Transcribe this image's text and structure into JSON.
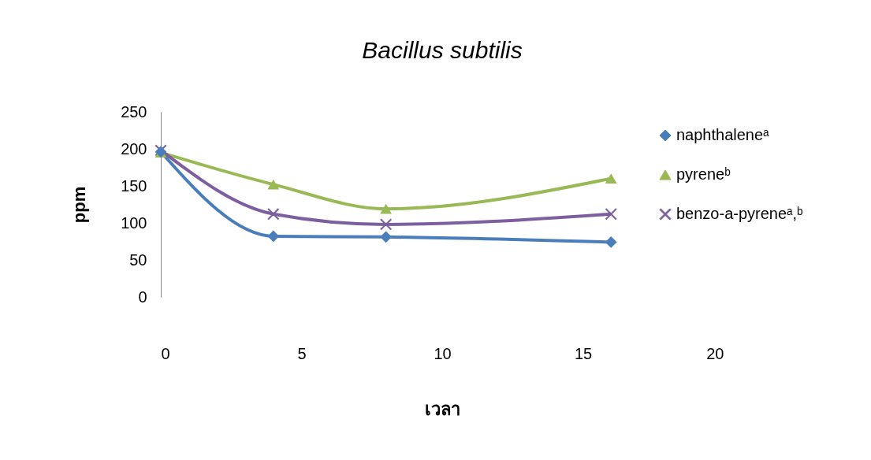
{
  "chart_data": {
    "type": "line",
    "title": "Bacillus subtilis",
    "xlabel": "เวลา",
    "ylabel": "ppm",
    "x": [
      0,
      4,
      8,
      16
    ],
    "series": [
      {
        "name": "naphthaleneᵃ",
        "color": "#4a7ebb",
        "marker": "diamond",
        "values": [
          196,
          82,
          81,
          74
        ]
      },
      {
        "name": "pyreneᵇ",
        "color": "#98b954",
        "marker": "triangle",
        "values": [
          195,
          152,
          119,
          160
        ]
      },
      {
        "name": "benzo-a-pyreneᵃ,ᵇ",
        "color": "#7d5fa0",
        "marker": "cross",
        "values": [
          198,
          112,
          98,
          112
        ]
      }
    ],
    "xlim": [
      0,
      20
    ],
    "xticks": [
      0,
      5,
      10,
      15,
      20
    ],
    "ylim": [
      0,
      250
    ],
    "yticks": [
      0,
      50,
      100,
      150,
      200,
      250
    ],
    "grid": false,
    "legend": "right"
  }
}
